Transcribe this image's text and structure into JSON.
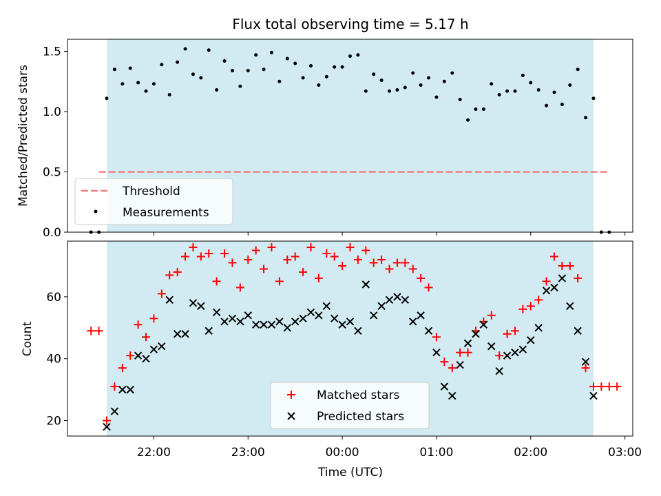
{
  "chart_data": [
    {
      "type": "scatter",
      "title": "Flux total observing time = 5.17 h",
      "ylabel": "Matched/Predicted stars",
      "xlabel": "",
      "ylim": [
        0,
        1.6
      ],
      "yticks": [
        0.0,
        0.5,
        1.0,
        1.5
      ],
      "ytick_labels": [
        "0.0",
        "0.5",
        "1.0",
        "1.5"
      ],
      "grid": false,
      "legend": "lower-left",
      "shaded_interval": [
        "21:30",
        "02:40"
      ],
      "shade_color": "#add8e6",
      "threshold": {
        "name": "Threshold",
        "value": 0.5,
        "x_start": "21:25",
        "x_end": "02:50",
        "color": "#f08080"
      },
      "series": [
        {
          "name": "Measurements",
          "color": "#000000",
          "x": [
            "21:25",
            "21:30",
            "21:35",
            "21:40",
            "21:45",
            "21:50",
            "21:55",
            "22:00",
            "22:05",
            "22:10",
            "22:15",
            "22:20",
            "22:25",
            "22:30",
            "22:35",
            "22:40",
            "22:45",
            "22:50",
            "22:55",
            "23:00",
            "23:05",
            "23:10",
            "23:15",
            "23:20",
            "23:25",
            "23:30",
            "23:35",
            "23:40",
            "23:45",
            "23:50",
            "23:55",
            "00:00",
            "00:05",
            "00:10",
            "00:15",
            "00:20",
            "00:25",
            "00:30",
            "00:35",
            "00:40",
            "00:45",
            "00:50",
            "00:55",
            "01:00",
            "01:05",
            "01:10",
            "01:15",
            "01:20",
            "01:25",
            "01:30",
            "01:35",
            "01:40",
            "01:45",
            "01:50",
            "01:55",
            "02:00",
            "02:05",
            "02:10",
            "02:15",
            "02:20",
            "02:25",
            "02:30",
            "02:35",
            "02:40",
            "02:45",
            "02:50"
          ],
          "y": [
            0,
            1.11,
            1.35,
            1.23,
            1.36,
            1.24,
            1.17,
            1.23,
            1.39,
            1.14,
            1.41,
            1.52,
            1.31,
            1.28,
            1.51,
            1.18,
            1.42,
            1.34,
            1.21,
            1.34,
            1.47,
            1.35,
            1.49,
            1.25,
            1.44,
            1.4,
            1.28,
            1.38,
            1.22,
            1.29,
            1.37,
            1.37,
            1.46,
            1.47,
            1.17,
            1.31,
            1.26,
            1.17,
            1.18,
            1.2,
            1.32,
            1.22,
            1.28,
            1.12,
            1.25,
            1.32,
            1.1,
            0.93,
            1.02,
            1.02,
            1.23,
            1.14,
            1.17,
            1.17,
            1.3,
            1.24,
            1.18,
            1.05,
            1.16,
            1.06,
            1.22,
            1.35,
            0.95,
            1.11,
            0,
            0
          ]
        }
      ],
      "extra_points": {
        "x": [
          "21:20"
        ],
        "y": [
          0
        ]
      }
    },
    {
      "type": "scatter",
      "title": "",
      "xlabel": "Time (UTC)",
      "ylabel": "Count",
      "ylim": [
        15,
        78
      ],
      "yticks": [
        20,
        40,
        60
      ],
      "ytick_labels": [
        "20",
        "40",
        "60"
      ],
      "xlim": [
        "21:05",
        "03:05"
      ],
      "xticks": [
        "22:00",
        "23:00",
        "00:00",
        "01:00",
        "02:00",
        "03:00"
      ],
      "xtick_labels": [
        "22:00",
        "23:00",
        "00:00",
        "01:00",
        "02:00",
        "03:00"
      ],
      "grid": false,
      "legend": "lower-center",
      "shaded_interval": [
        "21:30",
        "02:40"
      ],
      "series": [
        {
          "name": "Matched stars",
          "marker": "+",
          "color": "#ff0000",
          "x": [
            "21:20",
            "21:25",
            "21:30",
            "21:35",
            "21:40",
            "21:45",
            "21:50",
            "21:55",
            "22:00",
            "22:05",
            "22:10",
            "22:15",
            "22:20",
            "22:25",
            "22:30",
            "22:35",
            "22:40",
            "22:45",
            "22:50",
            "22:55",
            "23:00",
            "23:05",
            "23:10",
            "23:15",
            "23:20",
            "23:25",
            "23:30",
            "23:35",
            "23:40",
            "23:45",
            "23:50",
            "23:55",
            "00:00",
            "00:05",
            "00:10",
            "00:15",
            "00:20",
            "00:25",
            "00:30",
            "00:35",
            "00:40",
            "00:45",
            "00:50",
            "00:55",
            "01:00",
            "01:05",
            "01:10",
            "01:15",
            "01:20",
            "01:25",
            "01:30",
            "01:35",
            "01:40",
            "01:45",
            "01:50",
            "01:55",
            "02:00",
            "02:05",
            "02:10",
            "02:15",
            "02:20",
            "02:25",
            "02:30",
            "02:35",
            "02:40",
            "02:45",
            "02:50",
            "02:55"
          ],
          "y": [
            49,
            49,
            20,
            31,
            37,
            41,
            51,
            47,
            53,
            61,
            67,
            68,
            73,
            76,
            73,
            74,
            65,
            74,
            71,
            63,
            72,
            75,
            69,
            76,
            65,
            72,
            73,
            68,
            76,
            66,
            74,
            73,
            70,
            76,
            72,
            75,
            71,
            72,
            69,
            71,
            71,
            69,
            66,
            63,
            47,
            39,
            37,
            42,
            42,
            49,
            52,
            54,
            41,
            48,
            49,
            56,
            57,
            59,
            65,
            73,
            70,
            70,
            66,
            37,
            31,
            31,
            31,
            31
          ],
          "visible_from_index": 0
        },
        {
          "name": "Predicted stars",
          "marker": "x",
          "color": "#000000",
          "x": [
            "21:30",
            "21:35",
            "21:40",
            "21:45",
            "21:50",
            "21:55",
            "22:00",
            "22:05",
            "22:10",
            "22:15",
            "22:20",
            "22:25",
            "22:30",
            "22:35",
            "22:40",
            "22:45",
            "22:50",
            "22:55",
            "23:00",
            "23:05",
            "23:10",
            "23:15",
            "23:20",
            "23:25",
            "23:30",
            "23:35",
            "23:40",
            "23:45",
            "23:50",
            "23:55",
            "00:00",
            "00:05",
            "00:10",
            "00:15",
            "00:20",
            "00:25",
            "00:30",
            "00:35",
            "00:40",
            "00:45",
            "00:50",
            "00:55",
            "01:00",
            "01:05",
            "01:10",
            "01:15",
            "01:20",
            "01:25",
            "01:30",
            "01:35",
            "01:40",
            "01:45",
            "01:50",
            "01:55",
            "02:00",
            "02:05",
            "02:10",
            "02:15",
            "02:20",
            "02:25",
            "02:30",
            "02:35",
            "02:40"
          ],
          "y": [
            18,
            23,
            30,
            30,
            41,
            40,
            43,
            44,
            59,
            48,
            48,
            58,
            57,
            49,
            55,
            52,
            53,
            52,
            54,
            51,
            51,
            51,
            52,
            50,
            52,
            53,
            55,
            54,
            57,
            53,
            51,
            52,
            49,
            64,
            54,
            57,
            59,
            60,
            59,
            52,
            54,
            49,
            42,
            31,
            28,
            38,
            45,
            48,
            51,
            44,
            36,
            41,
            42,
            43,
            46,
            50,
            62,
            63,
            66,
            57,
            49,
            39,
            28
          ]
        }
      ]
    }
  ]
}
